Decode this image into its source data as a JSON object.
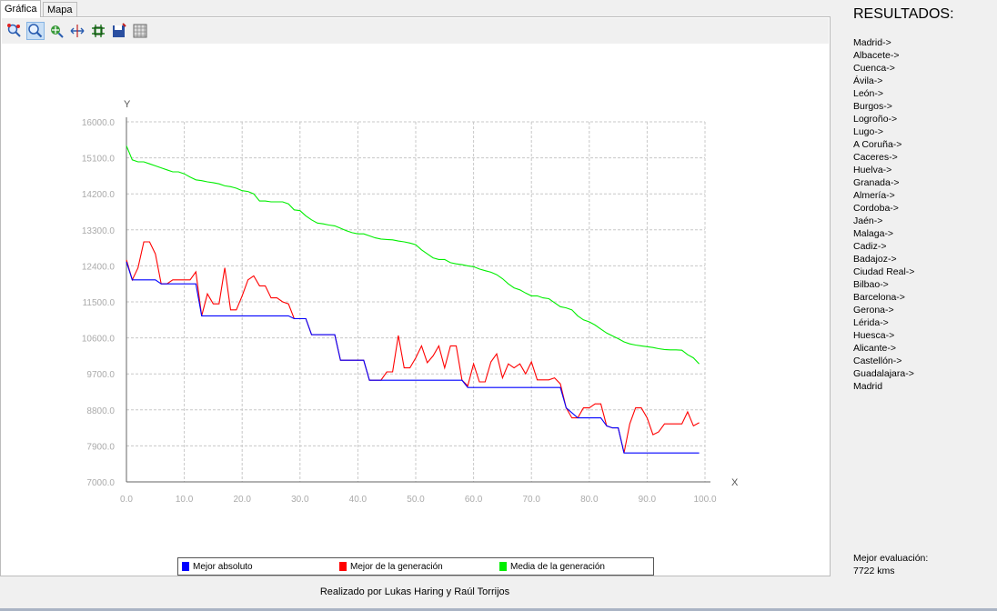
{
  "tabs": [
    {
      "label": "Gráfica",
      "active": true
    },
    {
      "label": "Mapa",
      "active": false
    }
  ],
  "toolbar": {
    "tools": [
      {
        "icon": "zoom-reset-icon"
      },
      {
        "icon": "zoom-magnifier-icon",
        "pressed": true
      },
      {
        "icon": "pan-icon"
      },
      {
        "icon": "fit-axes-icon"
      },
      {
        "icon": "grid-icon"
      },
      {
        "icon": "save-icon"
      },
      {
        "icon": "table-icon"
      }
    ]
  },
  "chart_data": {
    "type": "line",
    "xlabel": "X",
    "ylabel": "Y",
    "xlim": [
      0,
      100
    ],
    "ylim": [
      7000,
      16000
    ],
    "xticks": [
      "0.0",
      "10.0",
      "20.0",
      "30.0",
      "40.0",
      "50.0",
      "60.0",
      "70.0",
      "80.0",
      "90.0",
      "100.0"
    ],
    "yticks": [
      "7000.0",
      "7900.0",
      "8800.0",
      "9700.0",
      "10600.0",
      "11500.0",
      "12400.0",
      "13300.0",
      "14200.0",
      "15100.0",
      "16000.0"
    ],
    "grid": true,
    "legend_position": "bottom",
    "series": [
      {
        "name": "Mejor absoluto",
        "color": "#0000ff",
        "points": [
          [
            0,
            12500
          ],
          [
            1,
            12050
          ],
          [
            5,
            12050
          ],
          [
            6,
            11950
          ],
          [
            12,
            11950
          ],
          [
            13,
            11150
          ],
          [
            28,
            11150
          ],
          [
            29,
            11080
          ],
          [
            31,
            11080
          ],
          [
            32,
            10680
          ],
          [
            36,
            10680
          ],
          [
            37,
            10040
          ],
          [
            41,
            10040
          ],
          [
            42,
            9540
          ],
          [
            45,
            9540
          ],
          [
            46,
            9540
          ],
          [
            58,
            9540
          ],
          [
            59,
            9360
          ],
          [
            75,
            9360
          ],
          [
            76,
            8850
          ],
          [
            78,
            8600
          ],
          [
            82,
            8600
          ],
          [
            83,
            8400
          ],
          [
            84,
            8350
          ],
          [
            85,
            8350
          ],
          [
            86,
            7722
          ],
          [
            99,
            7722
          ]
        ]
      },
      {
        "name": "Mejor de la generación",
        "color": "#ff0000",
        "points": [
          [
            0,
            12550
          ],
          [
            1,
            12050
          ],
          [
            2,
            12350
          ],
          [
            3,
            13000
          ],
          [
            4,
            13000
          ],
          [
            5,
            12700
          ],
          [
            6,
            11950
          ],
          [
            7,
            11950
          ],
          [
            8,
            12050
          ],
          [
            9,
            12050
          ],
          [
            10,
            12050
          ],
          [
            11,
            12050
          ],
          [
            12,
            12250
          ],
          [
            13,
            11150
          ],
          [
            14,
            11700
          ],
          [
            15,
            11450
          ],
          [
            16,
            11450
          ],
          [
            17,
            12350
          ],
          [
            18,
            11300
          ],
          [
            19,
            11300
          ],
          [
            20,
            11650
          ],
          [
            21,
            12050
          ],
          [
            22,
            12150
          ],
          [
            23,
            11900
          ],
          [
            24,
            11900
          ],
          [
            25,
            11600
          ],
          [
            26,
            11600
          ],
          [
            27,
            11500
          ],
          [
            28,
            11450
          ],
          [
            29,
            11080
          ],
          [
            30,
            11080
          ],
          [
            31,
            11080
          ],
          [
            32,
            10680
          ],
          [
            33,
            10680
          ],
          [
            34,
            10680
          ],
          [
            35,
            10680
          ],
          [
            36,
            10680
          ],
          [
            37,
            10040
          ],
          [
            38,
            10040
          ],
          [
            39,
            10040
          ],
          [
            40,
            10040
          ],
          [
            41,
            10040
          ],
          [
            42,
            9540
          ],
          [
            43,
            9540
          ],
          [
            44,
            9540
          ],
          [
            45,
            9750
          ],
          [
            46,
            9750
          ],
          [
            47,
            10660
          ],
          [
            48,
            9850
          ],
          [
            49,
            9850
          ],
          [
            50,
            10100
          ],
          [
            51,
            10400
          ],
          [
            52,
            9980
          ],
          [
            53,
            10150
          ],
          [
            54,
            10400
          ],
          [
            55,
            9850
          ],
          [
            56,
            10400
          ],
          [
            57,
            10400
          ],
          [
            58,
            9540
          ],
          [
            59,
            9400
          ],
          [
            60,
            9950
          ],
          [
            61,
            9500
          ],
          [
            62,
            9500
          ],
          [
            63,
            10000
          ],
          [
            64,
            10200
          ],
          [
            65,
            9600
          ],
          [
            66,
            9950
          ],
          [
            67,
            9850
          ],
          [
            68,
            9950
          ],
          [
            69,
            9700
          ],
          [
            70,
            10000
          ],
          [
            71,
            9550
          ],
          [
            72,
            9550
          ],
          [
            73,
            9550
          ],
          [
            74,
            9600
          ],
          [
            75,
            9450
          ],
          [
            76,
            8850
          ],
          [
            77,
            8600
          ],
          [
            78,
            8600
          ],
          [
            79,
            8850
          ],
          [
            80,
            8850
          ],
          [
            81,
            8950
          ],
          [
            82,
            8950
          ],
          [
            83,
            8400
          ],
          [
            84,
            8350
          ],
          [
            85,
            8350
          ],
          [
            86,
            7722
          ],
          [
            87,
            8450
          ],
          [
            88,
            8850
          ],
          [
            89,
            8850
          ],
          [
            90,
            8600
          ],
          [
            91,
            8180
          ],
          [
            92,
            8250
          ],
          [
            93,
            8450
          ],
          [
            94,
            8450
          ],
          [
            95,
            8450
          ],
          [
            96,
            8450
          ],
          [
            97,
            8750
          ],
          [
            98,
            8400
          ],
          [
            99,
            8480
          ]
        ]
      },
      {
        "name": "Media de la generación",
        "color": "#00ee00",
        "points": [
          [
            0,
            15400
          ],
          [
            1,
            15050
          ],
          [
            2,
            15000
          ],
          [
            3,
            15000
          ],
          [
            4,
            14950
          ],
          [
            5,
            14900
          ],
          [
            6,
            14850
          ],
          [
            7,
            14800
          ],
          [
            8,
            14750
          ],
          [
            9,
            14750
          ],
          [
            10,
            14700
          ],
          [
            11,
            14620
          ],
          [
            12,
            14550
          ],
          [
            13,
            14530
          ],
          [
            14,
            14500
          ],
          [
            15,
            14480
          ],
          [
            16,
            14450
          ],
          [
            17,
            14400
          ],
          [
            18,
            14380
          ],
          [
            19,
            14340
          ],
          [
            20,
            14280
          ],
          [
            21,
            14260
          ],
          [
            22,
            14200
          ],
          [
            23,
            14020
          ],
          [
            24,
            14020
          ],
          [
            25,
            14000
          ],
          [
            26,
            14000
          ],
          [
            27,
            14000
          ],
          [
            28,
            13950
          ],
          [
            29,
            13800
          ],
          [
            30,
            13780
          ],
          [
            31,
            13650
          ],
          [
            32,
            13550
          ],
          [
            33,
            13470
          ],
          [
            34,
            13450
          ],
          [
            35,
            13420
          ],
          [
            36,
            13400
          ],
          [
            37,
            13340
          ],
          [
            38,
            13280
          ],
          [
            39,
            13230
          ],
          [
            40,
            13200
          ],
          [
            41,
            13200
          ],
          [
            42,
            13150
          ],
          [
            43,
            13100
          ],
          [
            44,
            13070
          ],
          [
            45,
            13060
          ],
          [
            46,
            13050
          ],
          [
            47,
            13020
          ],
          [
            48,
            13000
          ],
          [
            49,
            12970
          ],
          [
            50,
            12930
          ],
          [
            51,
            12800
          ],
          [
            52,
            12700
          ],
          [
            53,
            12600
          ],
          [
            54,
            12560
          ],
          [
            55,
            12560
          ],
          [
            56,
            12480
          ],
          [
            57,
            12450
          ],
          [
            58,
            12430
          ],
          [
            59,
            12400
          ],
          [
            60,
            12380
          ],
          [
            61,
            12320
          ],
          [
            62,
            12280
          ],
          [
            63,
            12240
          ],
          [
            64,
            12180
          ],
          [
            65,
            12080
          ],
          [
            66,
            11950
          ],
          [
            67,
            11850
          ],
          [
            68,
            11800
          ],
          [
            69,
            11720
          ],
          [
            70,
            11650
          ],
          [
            71,
            11650
          ],
          [
            72,
            11600
          ],
          [
            73,
            11580
          ],
          [
            74,
            11480
          ],
          [
            75,
            11380
          ],
          [
            76,
            11350
          ],
          [
            77,
            11300
          ],
          [
            78,
            11150
          ],
          [
            79,
            11050
          ],
          [
            80,
            11000
          ],
          [
            81,
            10920
          ],
          [
            82,
            10820
          ],
          [
            83,
            10720
          ],
          [
            84,
            10650
          ],
          [
            85,
            10580
          ],
          [
            86,
            10500
          ],
          [
            87,
            10450
          ],
          [
            88,
            10420
          ],
          [
            89,
            10400
          ],
          [
            90,
            10380
          ],
          [
            91,
            10360
          ],
          [
            92,
            10330
          ],
          [
            93,
            10310
          ],
          [
            94,
            10300
          ],
          [
            95,
            10300
          ],
          [
            96,
            10290
          ],
          [
            97,
            10180
          ],
          [
            98,
            10100
          ],
          [
            99,
            9950
          ]
        ]
      }
    ]
  },
  "results": {
    "title": "RESULTADOS:",
    "route": [
      "Madrid->",
      "Albacete->",
      "Cuenca->",
      "Ávila->",
      "León->",
      "Burgos->",
      "Logroño->",
      "Lugo->",
      "A Coruña->",
      "Caceres->",
      "Huelva->",
      "Granada->",
      "Almería->",
      "Cordoba->",
      "Jaén->",
      "Malaga->",
      "Cadiz->",
      "Badajoz->",
      "Ciudad Real->",
      "Bilbao->",
      "Barcelona->",
      "Gerona->",
      "Lérida->",
      "Huesca->",
      "Alicante->",
      "Castellón->",
      "Guadalajara->",
      "Madrid"
    ],
    "eval_label": "Mejor evaluación:",
    "eval_value": "7722 kms"
  },
  "footer": "Realizado por Lukas Haring y Raúl Torrijos"
}
